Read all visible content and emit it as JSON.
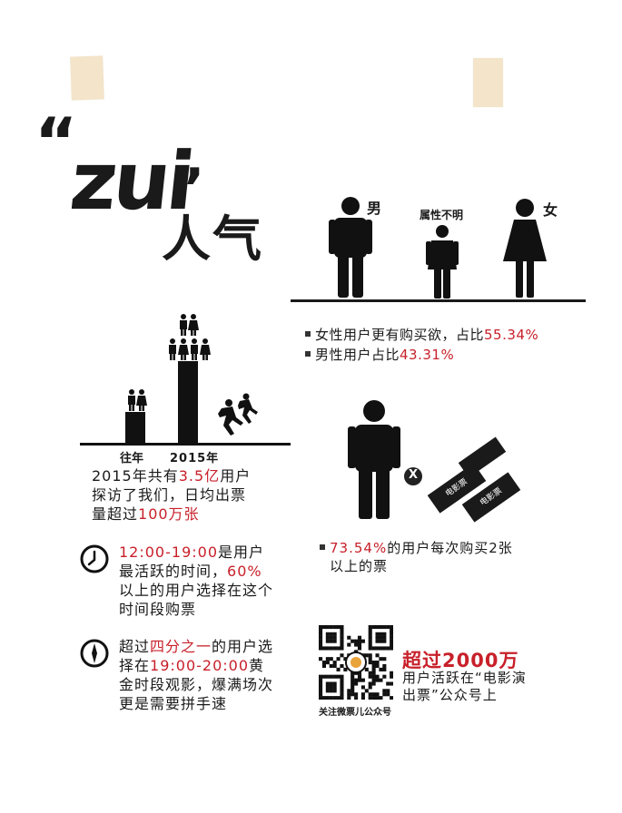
{
  "header": {
    "title_latin": "zui",
    "open_quote": "“",
    "close_quote": "”",
    "title_cn": "人气"
  },
  "gender": {
    "male_label": "男",
    "unknown_label": "属性不明",
    "female_label": "女",
    "stat1_prefix": "女性用户更有购买欲，占比",
    "stat1_value": "55.34%",
    "stat2_prefix": "男性用户占比",
    "stat2_value": "43.31%"
  },
  "growth": {
    "label_past": "往年",
    "label_2015": "2015年",
    "line1_prefix": "2015年共有",
    "line1_value": "3.5亿",
    "line1_suffix": "用户",
    "line2": "探访了我们，日均出票",
    "line3_prefix": "量超过",
    "line3_value": "100万张"
  },
  "multi": {
    "x_mark": "X",
    "ticket_text": "电影票",
    "value": "73.54%",
    "text_suffix": "的用户每次购买2张",
    "text_line2": "以上的票"
  },
  "active_time": {
    "value_time": "12:00-19:00",
    "text1": "是用户",
    "line2_prefix": "最活跃的时间，",
    "value_pct": "60%",
    "line3": "以上的用户选择在这个",
    "line4": "时间段购票"
  },
  "golden": {
    "line1_prefix": "超过",
    "line1_value": "四分之一",
    "line1_suffix": "的用户选",
    "line2_prefix": "择在",
    "line2_value": "19:00-20:00",
    "line2_suffix": "黄",
    "line3": "金时段观影，爆满场次",
    "line4": "更是需要拼手速"
  },
  "qr": {
    "caption": "关注微票儿公众号",
    "headline": "超过2000万",
    "line1": "用户活跃在“电影演",
    "line2": "出票”公众号上"
  }
}
